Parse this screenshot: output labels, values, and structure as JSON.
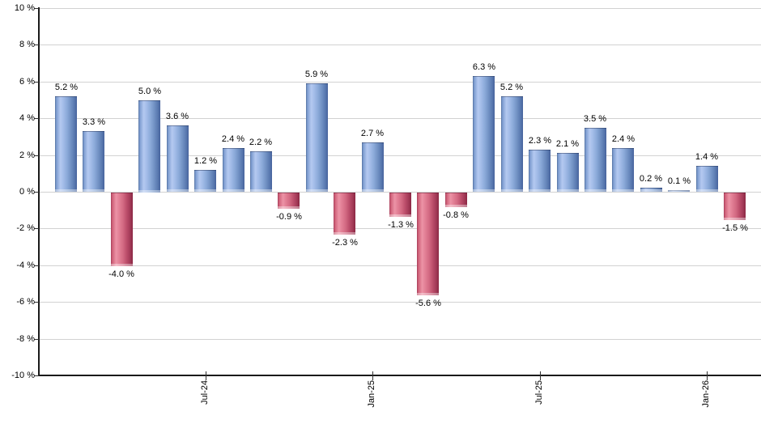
{
  "chart_data": {
    "type": "bar",
    "title": "",
    "grid": true,
    "legend_position": "none",
    "ylim": [
      -10,
      10
    ],
    "y_tick_values": [
      10,
      8,
      6,
      4,
      2,
      0,
      -2,
      -4,
      -6,
      -8,
      -10
    ],
    "y_tick_labels": [
      "10 %",
      "8 %",
      "6 %",
      "4 %",
      "2 %",
      "0 %",
      "-2 %",
      "-4 %",
      "-6 %",
      "-8 %",
      "-10 %"
    ],
    "x_ticks": [
      {
        "label": "Jul-24",
        "bar_index": 5
      },
      {
        "label": "Jan-25",
        "bar_index": 11
      },
      {
        "label": "Jul-25",
        "bar_index": 17
      },
      {
        "label": "Jan-26",
        "bar_index": 23
      }
    ],
    "values": [
      5.2,
      3.3,
      -4.0,
      5.0,
      3.6,
      1.2,
      2.4,
      2.2,
      -0.9,
      5.9,
      -2.3,
      2.7,
      -1.3,
      -5.6,
      -0.8,
      6.3,
      5.2,
      2.3,
      2.1,
      3.5,
      2.4,
      0.2,
      0.1,
      1.4,
      -1.5
    ],
    "bar_labels": [
      "5.2 %",
      "3.3 %",
      "-4.0 %",
      "5.0 %",
      "3.6 %",
      "1.2 %",
      "2.4 %",
      "2.2 %",
      "-0.9 %",
      "5.9 %",
      "-2.3 %",
      "2.7 %",
      "-1.3 %",
      "-5.6 %",
      "-0.8 %",
      "6.3 %",
      "5.2 %",
      "2.3 %",
      "2.1 %",
      "3.5 %",
      "2.4 %",
      "0.2 %",
      "0.1 %",
      "1.4 %",
      "-1.5 %"
    ],
    "colors": {
      "positive": "#7d9cd0",
      "positive_highlight": "#b4c9f0",
      "positive_dark": "#47639c",
      "negative": "#ce6078",
      "negative_highlight": "#ec93a6",
      "negative_dark": "#8c2744",
      "grid": "#d2d2d2",
      "axis": "#1a1a1a",
      "text": "#000000",
      "background": "#ffffff"
    }
  }
}
